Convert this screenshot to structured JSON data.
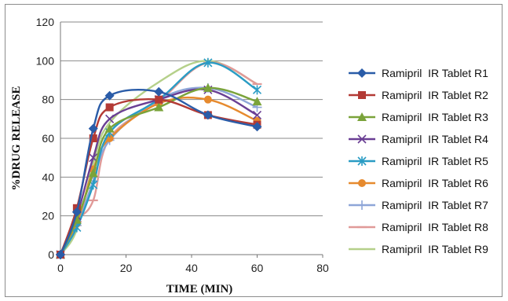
{
  "chart_data": {
    "type": "line",
    "title": "",
    "xlabel": "TIME (MIN)",
    "ylabel": "%DRUG RELEASE",
    "xlim": [
      0,
      80
    ],
    "ylim": [
      0,
      120
    ],
    "xticks": [
      0,
      20,
      40,
      60,
      80
    ],
    "yticks": [
      0,
      20,
      40,
      60,
      80,
      100,
      120
    ],
    "grid": "horizontal",
    "legend": "right",
    "x": [
      0,
      5,
      10,
      15,
      30,
      45,
      60
    ],
    "series": [
      {
        "name": "Ramipril  IR Tablet R1",
        "color": "#2a5ca8",
        "marker": "diamond",
        "values": [
          0,
          22,
          65,
          82,
          84,
          72,
          66
        ]
      },
      {
        "name": "Ramipril  IR Tablet R2",
        "color": "#b33a35",
        "marker": "square",
        "values": [
          0,
          24,
          60,
          76,
          80,
          72,
          67
        ]
      },
      {
        "name": "Ramipril  IR Tablet R3",
        "color": "#7aa33a",
        "marker": "triangle",
        "values": [
          0,
          18,
          42,
          65,
          76,
          86,
          79
        ]
      },
      {
        "name": "Ramipril  IR Tablet R4",
        "color": "#6a3f94",
        "marker": "x",
        "values": [
          0,
          20,
          50,
          70,
          80,
          85,
          72
        ]
      },
      {
        "name": "Ramipril  IR Tablet R5",
        "color": "#2a9cc4",
        "marker": "star",
        "values": [
          0,
          14,
          36,
          63,
          80,
          99,
          85
        ]
      },
      {
        "name": "Ramipril  IR Tablet R6",
        "color": "#e68a2e",
        "marker": "circle",
        "values": [
          0,
          16,
          44,
          60,
          78,
          80,
          69
        ]
      },
      {
        "name": "Ramipril  IR Tablet R7",
        "color": "#8ea6d8",
        "marker": "plus",
        "values": [
          0,
          15,
          38,
          59,
          80,
          86,
          76
        ]
      },
      {
        "name": "Ramipril  IR Tablet R8",
        "color": "#e09a98",
        "marker": "dash",
        "values": [
          0,
          17,
          28,
          60,
          79,
          99,
          88
        ]
      },
      {
        "name": "Ramipril  IR Tablet R9",
        "color": "#b5d08a",
        "marker": "none",
        "values": [
          0,
          13,
          47,
          68,
          89,
          100,
          88
        ]
      }
    ]
  }
}
